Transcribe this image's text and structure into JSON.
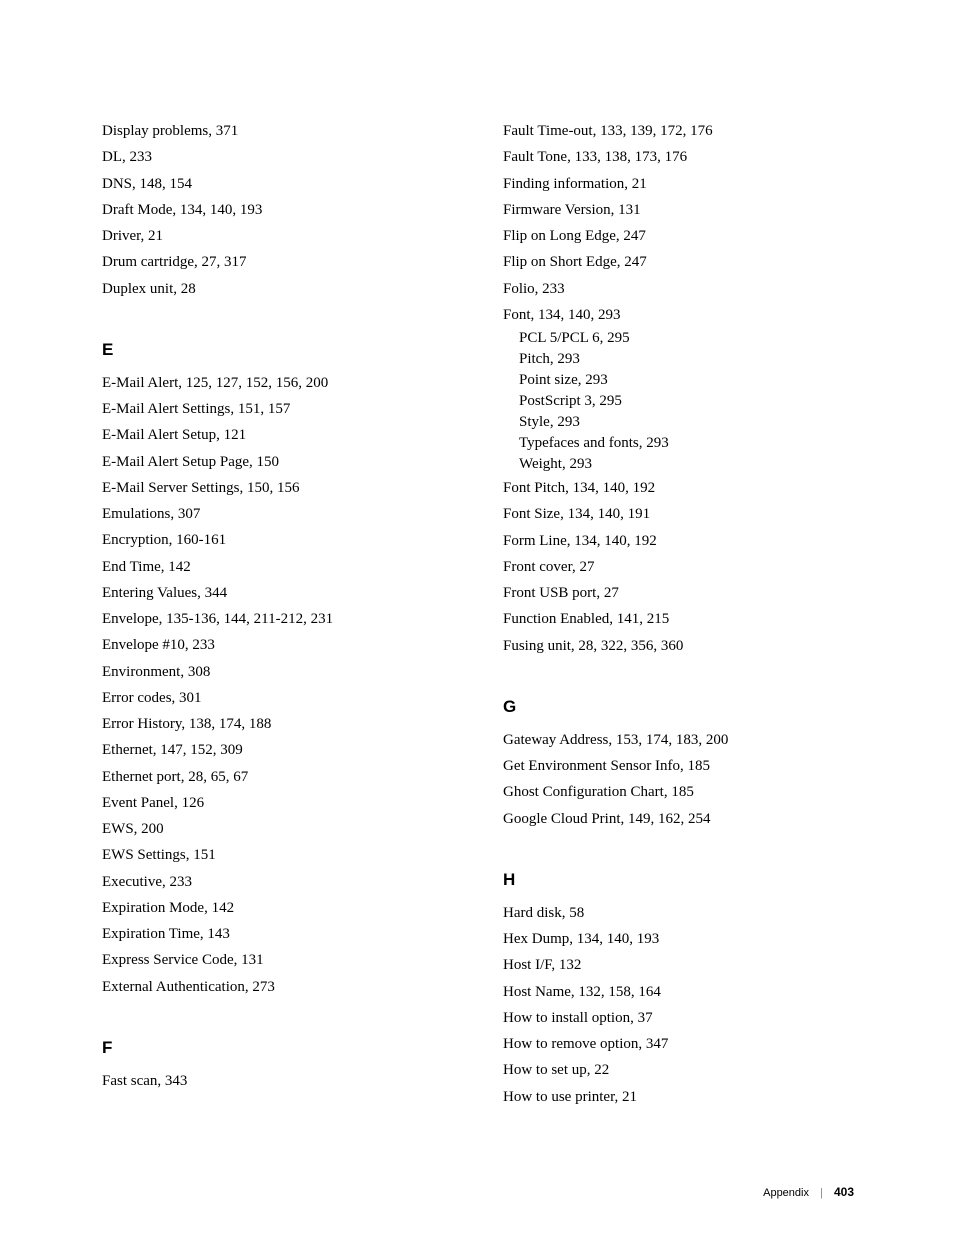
{
  "left_column": {
    "continuation": [
      "Display problems, 371",
      "DL, 233",
      "DNS, 148, 154",
      "Draft Mode, 134, 140, 193",
      "Driver, 21",
      "Drum cartridge, 27, 317",
      "Duplex unit, 28"
    ],
    "sections": [
      {
        "heading": "E",
        "entries": [
          "E-Mail Alert, 125, 127, 152, 156, 200",
          "E-Mail Alert Settings, 151, 157",
          "E-Mail Alert Setup, 121",
          "E-Mail Alert Setup Page, 150",
          "E-Mail Server Settings, 150, 156",
          "Emulations, 307",
          "Encryption, 160-161",
          "End Time, 142",
          "Entering Values, 344",
          "Envelope, 135-136, 144, 211-212, 231",
          "Envelope #10, 233",
          "Environment, 308",
          "Error codes, 301",
          "Error History, 138, 174, 188",
          "Ethernet, 147, 152, 309",
          "Ethernet port, 28, 65, 67",
          "Event Panel, 126",
          "EWS, 200",
          "EWS Settings, 151",
          "Executive, 233",
          "Expiration Mode, 142",
          "Expiration Time, 143",
          "Express Service Code, 131",
          "External Authentication, 273"
        ]
      },
      {
        "heading": "F",
        "entries": [
          "Fast scan, 343"
        ]
      }
    ]
  },
  "right_column": {
    "continuation": [
      "Fault Time-out, 133, 139, 172, 176",
      "Fault Tone, 133, 138, 173, 176",
      "Finding information, 21",
      "Firmware Version, 131",
      "Flip on Long Edge, 247",
      "Flip on Short Edge, 247",
      "Folio, 233"
    ],
    "font_entry": {
      "main": "Font, 134, 140, 293",
      "subs": [
        "PCL 5/PCL 6, 295",
        "Pitch, 293",
        "Point size, 293",
        "PostScript 3, 295",
        "Style, 293",
        "Typefaces and fonts, 293",
        "Weight, 293"
      ]
    },
    "continuation2": [
      "Font Pitch, 134, 140, 192",
      "Font Size, 134, 140, 191",
      "Form Line, 134, 140, 192",
      "Front cover, 27",
      "Front USB port, 27",
      "Function Enabled, 141, 215",
      "Fusing unit, 28, 322, 356, 360"
    ],
    "sections": [
      {
        "heading": "G",
        "entries": [
          "Gateway Address, 153, 174, 183, 200",
          "Get Environment Sensor Info, 185",
          "Ghost Configuration Chart, 185",
          "Google Cloud Print, 149, 162, 254"
        ]
      },
      {
        "heading": "H",
        "entries": [
          "Hard disk, 58",
          "Hex Dump, 134, 140, 193",
          "Host I/F, 132",
          "Host Name, 132, 158, 164",
          "How to install option, 37",
          "How to remove option, 347",
          "How to set up, 22",
          "How to use printer, 21"
        ]
      }
    ]
  },
  "footer": {
    "label": "Appendix",
    "page": "403"
  }
}
